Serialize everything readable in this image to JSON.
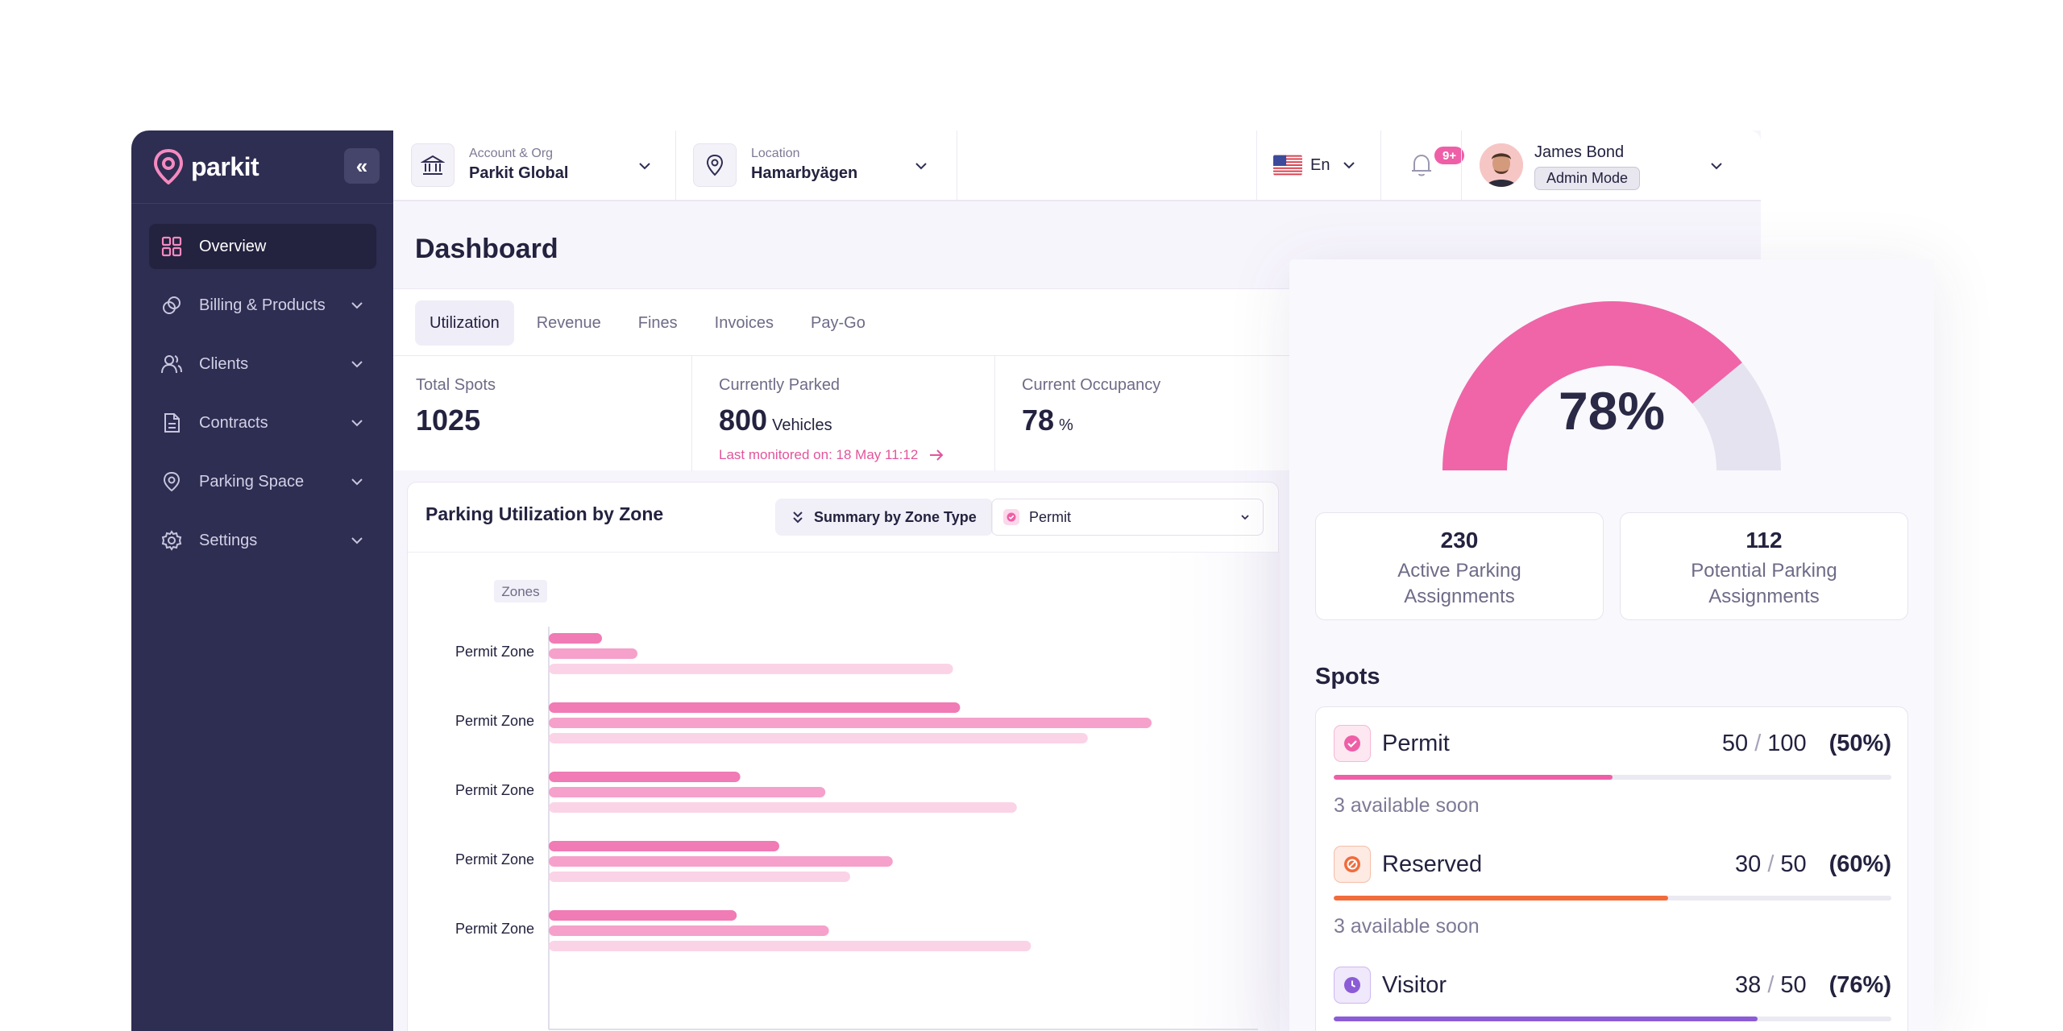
{
  "sidebar": {
    "brand": "parkit",
    "items": [
      {
        "label": "Overview",
        "icon": "grid-icon"
      },
      {
        "label": "Billing & Products",
        "icon": "coins-icon"
      },
      {
        "label": "Clients",
        "icon": "users-icon"
      },
      {
        "label": "Contracts",
        "icon": "document-icon"
      },
      {
        "label": "Parking Space",
        "icon": "map-pin-icon"
      },
      {
        "label": "Settings",
        "icon": "gear-icon"
      }
    ]
  },
  "topbar": {
    "account": {
      "label": "Account & Org",
      "value": "Parkit Global"
    },
    "location": {
      "label": "Location",
      "value": "Hamarbyägen"
    },
    "language": "En",
    "notifications_badge": "9+",
    "user": {
      "name": "James Bond",
      "role": "Admin Mode"
    }
  },
  "page": {
    "title": "Dashboard"
  },
  "tabs": [
    "Utilization",
    "Revenue",
    "Fines",
    "Invoices",
    "Pay-Go"
  ],
  "stats": {
    "total_spots": {
      "label": "Total Spots",
      "value": "1025"
    },
    "currently_parked": {
      "label": "Currently Parked",
      "value": "800",
      "unit": "Vehicles",
      "note": "Last monitored on: 18 May 11:12"
    },
    "current_occupancy": {
      "label": "Current Occupancy",
      "value": "78",
      "unit": "%"
    }
  },
  "chart": {
    "title": "Parking Utilization by Zone",
    "summary_button": "Summary by Zone Type",
    "filter_value": "Permit"
  },
  "chart_data": {
    "type": "bar",
    "orientation": "horizontal",
    "y_axis_label": "Zones",
    "categories": [
      "Permit Zone",
      "Permit Zone",
      "Permit Zone",
      "Permit Zone",
      "Permit Zone"
    ],
    "series": [
      {
        "values": [
          7.5,
          58,
          27,
          32.5,
          26.5
        ],
        "color": "#f07bb5"
      },
      {
        "values": [
          12.5,
          85,
          39,
          48.5,
          39.5
        ],
        "color": "#f5a1cb"
      },
      {
        "values": [
          57,
          76,
          66,
          42.5,
          68
        ],
        "color": "#fbd3e7"
      }
    ],
    "xlim": [
      0,
      100
    ],
    "grid": false,
    "legend": false
  },
  "overview": {
    "gauge_percent": 78,
    "gauge_text": "78%",
    "gauge_colors": {
      "filled": "#ef65a8",
      "remaining": "#e5e3ef"
    },
    "active_assignments": {
      "value": "230",
      "label": "Active Parking Assignments"
    },
    "potential_assignments": {
      "value": "112",
      "label": "Potential Parking Assignments"
    },
    "spots_title": "Spots",
    "spots": [
      {
        "name": "Permit",
        "used": "50",
        "total": "100",
        "pct_text": "(50%)",
        "fill": 0.5,
        "note": "3 available soon",
        "color": "#ee5fa7",
        "icon": "check-icon"
      },
      {
        "name": "Reserved",
        "used": "30",
        "total": "50",
        "pct_text": "(60%)",
        "fill": 0.6,
        "note": "3 available soon",
        "color": "#f26b3a",
        "icon": "prohibit-icon"
      },
      {
        "name": "Visitor",
        "used": "38",
        "total": "50",
        "pct_text": "(76%)",
        "fill": 0.76,
        "note": "",
        "color": "#8b5cd6",
        "icon": "clock-icon"
      }
    ]
  }
}
